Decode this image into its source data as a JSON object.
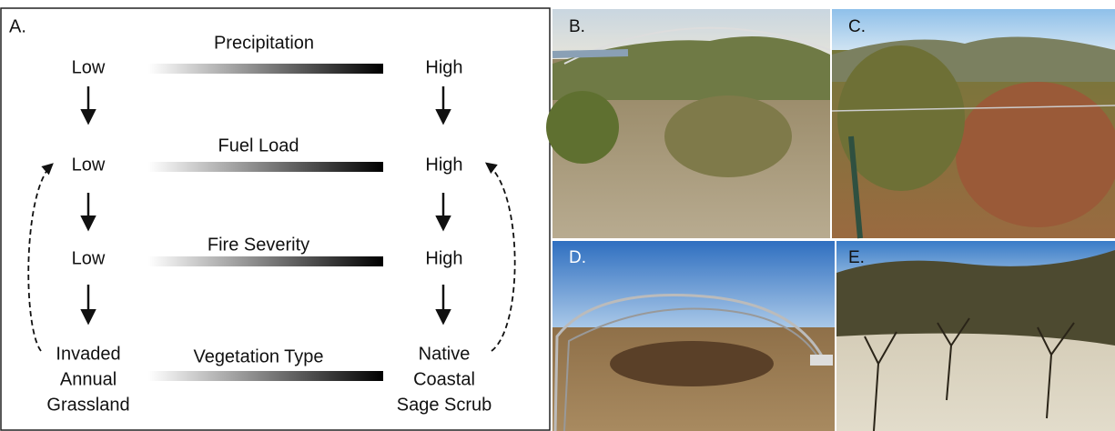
{
  "panel_a": {
    "label": "A.",
    "rows": [
      {
        "gradient_label": "Precipitation",
        "left": "Low",
        "right": "High"
      },
      {
        "gradient_label": "Fuel Load",
        "left": "Low",
        "right": "High"
      },
      {
        "gradient_label": "Fire Severity",
        "left": "Low",
        "right": "High"
      },
      {
        "gradient_label": "Vegetation Type",
        "left_lines": [
          "Invaded",
          "Annual",
          "Grassland"
        ],
        "right_lines": [
          "Native",
          "Coastal",
          "Sage Scrub"
        ]
      }
    ]
  },
  "photos": [
    {
      "label": "B."
    },
    {
      "label": "C."
    },
    {
      "label": "D."
    },
    {
      "label": "E."
    }
  ]
}
